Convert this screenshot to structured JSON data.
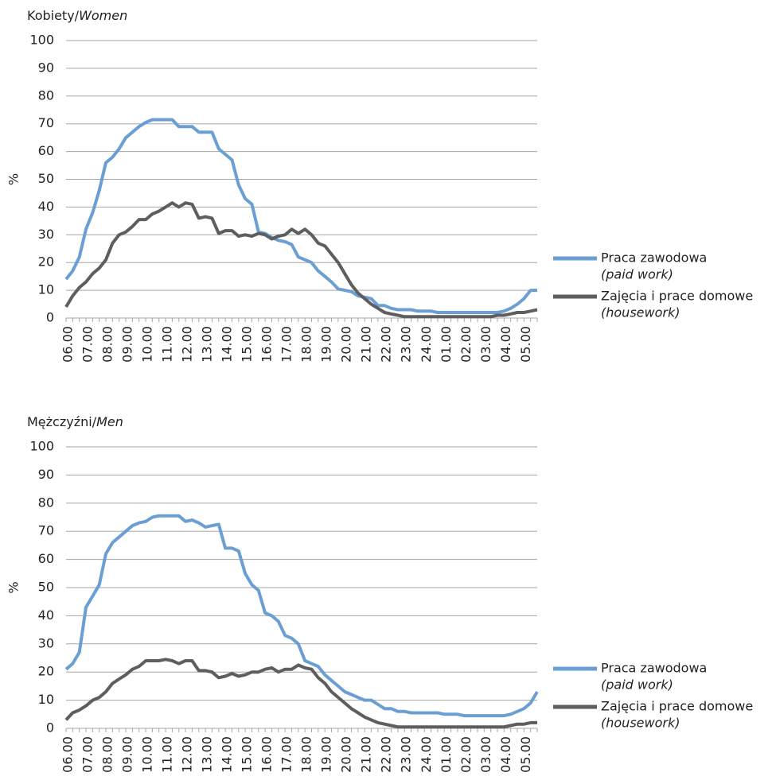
{
  "chart_data": [
    {
      "type": "line",
      "title": {
        "text": "Kobiety/",
        "emphasis": "Women"
      },
      "y_label": "%",
      "categories": [
        "06.00",
        null,
        null,
        "07.00",
        null,
        null,
        "08.00",
        null,
        null,
        "09.00",
        null,
        null,
        "10.00",
        null,
        null,
        "11.00",
        null,
        null,
        "12.00",
        null,
        null,
        "13.00",
        null,
        null,
        "14.00",
        null,
        null,
        "15.00",
        null,
        null,
        "16.00",
        null,
        null,
        "17.00",
        null,
        null,
        "18.00",
        null,
        null,
        "19.00",
        null,
        null,
        "20.00",
        null,
        null,
        "21.00",
        null,
        null,
        "22.00",
        null,
        null,
        "23.00",
        null,
        null,
        "24.00",
        null,
        null,
        "01.00",
        null,
        null,
        "02.00",
        null,
        null,
        "03.00",
        null,
        null,
        "04.00",
        null,
        null,
        "05.00",
        null,
        null
      ],
      "ylim": [
        0,
        100
      ],
      "yticks": [
        0,
        10,
        20,
        30,
        40,
        50,
        60,
        70,
        80,
        90,
        100
      ],
      "grid": true,
      "legend": "right",
      "series": [
        {
          "name": "Praca zawodowa",
          "name_en": "(paid work)",
          "color": "#6b9fd3",
          "values": [
            14,
            17,
            22,
            32,
            38,
            46,
            56,
            58,
            61,
            65,
            67,
            69,
            70.5,
            71.5,
            71.5,
            71.5,
            71.5,
            69,
            69,
            69,
            67,
            67,
            67,
            61,
            59,
            57,
            48,
            43,
            41,
            31,
            30.5,
            29,
            28,
            27.5,
            26.5,
            22,
            21,
            20,
            17,
            15,
            13,
            10.5,
            10,
            9.5,
            8,
            7.5,
            7,
            4.5,
            4.5,
            3.5,
            3,
            3,
            3,
            2.5,
            2.5,
            2.5,
            2,
            2,
            2,
            2,
            2,
            2,
            2,
            2,
            2,
            2,
            2.5,
            3.5,
            5,
            7,
            10,
            10
          ]
        },
        {
          "name": "Zajęcia i prace domowe",
          "name_en": "(housework)",
          "color": "#5e5e5e",
          "values": [
            4,
            8,
            11,
            13,
            16,
            18,
            21,
            27,
            30,
            31,
            33,
            35.5,
            35.5,
            37.5,
            38.5,
            40,
            41.5,
            40,
            41.5,
            41,
            36,
            36.5,
            36,
            30.5,
            31.5,
            31.5,
            29.5,
            30,
            29.5,
            30.5,
            30,
            28.5,
            29.5,
            30,
            32,
            30.5,
            32,
            30,
            27,
            26,
            23,
            20,
            16,
            12,
            9,
            7,
            5,
            3.5,
            2,
            1.5,
            1,
            0.5,
            0.5,
            0.5,
            0.5,
            0.5,
            0.5,
            0.5,
            0.5,
            0.5,
            0.5,
            0.5,
            0.5,
            0.5,
            0.5,
            1,
            1,
            1.5,
            2,
            2,
            2.5,
            3
          ]
        }
      ]
    },
    {
      "type": "line",
      "title": {
        "text": "Mężczyźni/",
        "emphasis": "Men"
      },
      "y_label": "%",
      "categories": [
        "06.00",
        null,
        null,
        "07.00",
        null,
        null,
        "08.00",
        null,
        null,
        "09.00",
        null,
        null,
        "10.00",
        null,
        null,
        "11.00",
        null,
        null,
        "12.00",
        null,
        null,
        "13.00",
        null,
        null,
        "14.00",
        null,
        null,
        "15.00",
        null,
        null,
        "16.00",
        null,
        null,
        "17.00",
        null,
        null,
        "18.00",
        null,
        null,
        "19.00",
        null,
        null,
        "20.00",
        null,
        null,
        "21.00",
        null,
        null,
        "22.00",
        null,
        null,
        "23.00",
        null,
        null,
        "24.00",
        null,
        null,
        "01.00",
        null,
        null,
        "02.00",
        null,
        null,
        "03.00",
        null,
        null,
        "04.00",
        null,
        null,
        "05.00",
        null,
        null
      ],
      "ylim": [
        0,
        100
      ],
      "yticks": [
        0,
        10,
        20,
        30,
        40,
        50,
        60,
        70,
        80,
        90,
        100
      ],
      "grid": true,
      "legend": "right",
      "series": [
        {
          "name": "Praca zawodowa",
          "name_en": "(paid work)",
          "color": "#6b9fd3",
          "values": [
            21,
            23,
            27,
            43,
            47,
            51,
            62,
            66,
            68,
            70,
            72,
            73,
            73.5,
            75,
            75.5,
            75.5,
            75.5,
            75.5,
            73.5,
            74,
            73,
            71.5,
            72,
            72.5,
            64,
            64,
            63,
            55,
            51,
            49,
            41,
            40,
            38,
            33,
            32,
            30,
            24,
            23,
            22,
            19,
            17,
            15,
            13,
            12,
            11,
            10,
            10,
            8.5,
            7,
            7,
            6,
            6,
            5.5,
            5.5,
            5.5,
            5.5,
            5.5,
            5,
            5,
            5,
            4.5,
            4.5,
            4.5,
            4.5,
            4.5,
            4.5,
            4.5,
            5,
            6,
            7,
            9,
            13
          ]
        },
        {
          "name": "Zajęcia i prace domowe",
          "name_en": "(housework)",
          "color": "#5e5e5e",
          "values": [
            3,
            5.5,
            6.5,
            8,
            10,
            11,
            13,
            16,
            17.5,
            19,
            21,
            22,
            24,
            24,
            24,
            24.5,
            24,
            23,
            24,
            24,
            20.5,
            20.5,
            20,
            18,
            18.5,
            19.5,
            18.5,
            19,
            20,
            20,
            21,
            21.5,
            20,
            21,
            21,
            22.5,
            21.5,
            21,
            18,
            16,
            13,
            11,
            9,
            7,
            5.5,
            4,
            3,
            2,
            1.5,
            1,
            0.5,
            0.5,
            0.5,
            0.5,
            0.5,
            0.5,
            0.5,
            0.5,
            0.5,
            0.5,
            0.5,
            0.5,
            0.5,
            0.5,
            0.5,
            0.5,
            0.5,
            1,
            1.5,
            1.5,
            2,
            2
          ]
        }
      ]
    }
  ]
}
